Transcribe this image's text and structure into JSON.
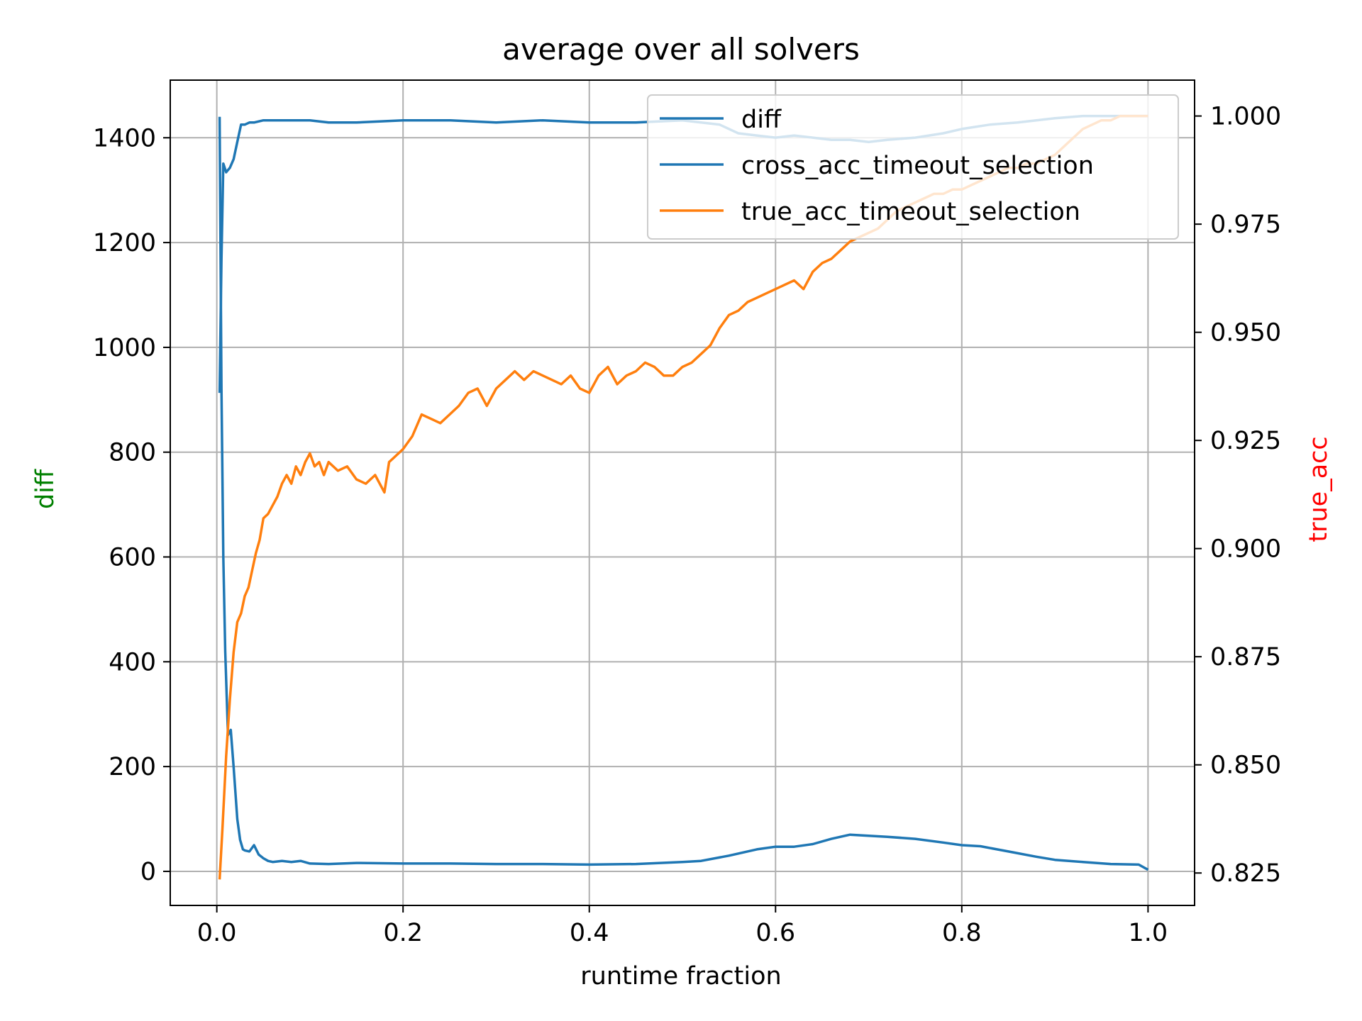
{
  "chart_data": {
    "type": "line",
    "title": "average over all solvers",
    "xlabel": "runtime fraction",
    "ylabel": "diff",
    "y2label": "true_acc",
    "xlim": [
      -0.05,
      1.05
    ],
    "ylim": [
      -65,
      1510
    ],
    "y2lim": [
      0.8175,
      1.0083
    ],
    "xticks": [
      "0.0",
      "0.2",
      "0.4",
      "0.6",
      "0.8",
      "1.0"
    ],
    "xtick_values": [
      0.0,
      0.2,
      0.4,
      0.6,
      0.8,
      1.0
    ],
    "yticks": [
      "0",
      "200",
      "400",
      "600",
      "800",
      "1000",
      "1200",
      "1400"
    ],
    "ytick_values": [
      0,
      200,
      400,
      600,
      800,
      1000,
      1200,
      1400
    ],
    "y2ticks": [
      "0.825",
      "0.850",
      "0.875",
      "0.900",
      "0.925",
      "0.950",
      "0.975",
      "1.000"
    ],
    "y2tick_values": [
      0.825,
      0.85,
      0.875,
      0.9,
      0.925,
      0.95,
      0.975,
      1.0
    ],
    "grid": true,
    "legend_position": "top-right",
    "colors": {
      "blue": "#1f77b4",
      "orange": "#ff7f0e",
      "grid": "#b0b0b0",
      "ylabel_color": "#008000",
      "y2label_color": "#ff0000"
    },
    "series": [
      {
        "name": "diff",
        "axis": "left",
        "color": "#1f77b4",
        "x": [
          0.003,
          0.005,
          0.007,
          0.009,
          0.012,
          0.015,
          0.018,
          0.02,
          0.022,
          0.025,
          0.028,
          0.03,
          0.035,
          0.04,
          0.045,
          0.05,
          0.055,
          0.06,
          0.07,
          0.08,
          0.09,
          0.1,
          0.12,
          0.15,
          0.2,
          0.25,
          0.3,
          0.35,
          0.4,
          0.45,
          0.5,
          0.52,
          0.55,
          0.58,
          0.6,
          0.62,
          0.64,
          0.66,
          0.68,
          0.7,
          0.72,
          0.75,
          0.78,
          0.8,
          0.82,
          0.85,
          0.88,
          0.9,
          0.93,
          0.96,
          0.99,
          1.0
        ],
        "y": [
          1440,
          920,
          600,
          420,
          260,
          270,
          200,
          150,
          100,
          60,
          42,
          40,
          38,
          50,
          32,
          25,
          20,
          18,
          20,
          18,
          20,
          15,
          14,
          16,
          15,
          15,
          14,
          14,
          13,
          14,
          18,
          20,
          30,
          42,
          47,
          47,
          52,
          62,
          70,
          68,
          66,
          62,
          55,
          50,
          48,
          38,
          28,
          22,
          18,
          14,
          13,
          3
        ]
      },
      {
        "name": "cross_acc_timeout_selection",
        "axis": "right",
        "color": "#1f77b4",
        "x": [
          0.003,
          0.005,
          0.007,
          0.01,
          0.014,
          0.018,
          0.022,
          0.026,
          0.03,
          0.035,
          0.04,
          0.05,
          0.06,
          0.08,
          0.1,
          0.12,
          0.15,
          0.2,
          0.25,
          0.3,
          0.35,
          0.4,
          0.45,
          0.5,
          0.52,
          0.54,
          0.56,
          0.58,
          0.6,
          0.62,
          0.64,
          0.66,
          0.68,
          0.7,
          0.72,
          0.75,
          0.78,
          0.8,
          0.83,
          0.86,
          0.9,
          0.93,
          0.96,
          0.99,
          1.0
        ],
        "y": [
          0.936,
          0.967,
          0.989,
          0.987,
          0.988,
          0.99,
          0.994,
          0.998,
          0.998,
          0.9985,
          0.9985,
          0.999,
          0.999,
          0.999,
          0.999,
          0.9985,
          0.9985,
          0.999,
          0.999,
          0.9985,
          0.999,
          0.9985,
          0.9985,
          0.999,
          0.9985,
          0.998,
          0.996,
          0.9955,
          0.995,
          0.9955,
          0.995,
          0.9945,
          0.9945,
          0.994,
          0.9945,
          0.995,
          0.996,
          0.997,
          0.998,
          0.9985,
          0.9995,
          1.0,
          1.0,
          1.0,
          1.0
        ]
      },
      {
        "name": "true_acc_timeout_selection",
        "axis": "right",
        "color": "#ff7f0e",
        "x": [
          0.003,
          0.006,
          0.01,
          0.014,
          0.018,
          0.022,
          0.026,
          0.03,
          0.034,
          0.038,
          0.042,
          0.046,
          0.05,
          0.055,
          0.06,
          0.065,
          0.07,
          0.075,
          0.08,
          0.085,
          0.09,
          0.095,
          0.1,
          0.105,
          0.11,
          0.115,
          0.12,
          0.13,
          0.14,
          0.15,
          0.16,
          0.17,
          0.18,
          0.185,
          0.19,
          0.2,
          0.21,
          0.22,
          0.23,
          0.24,
          0.25,
          0.26,
          0.27,
          0.28,
          0.29,
          0.3,
          0.31,
          0.32,
          0.33,
          0.34,
          0.35,
          0.36,
          0.37,
          0.38,
          0.39,
          0.4,
          0.41,
          0.42,
          0.43,
          0.44,
          0.45,
          0.46,
          0.47,
          0.48,
          0.49,
          0.5,
          0.51,
          0.52,
          0.53,
          0.54,
          0.55,
          0.56,
          0.57,
          0.58,
          0.59,
          0.6,
          0.61,
          0.62,
          0.63,
          0.64,
          0.65,
          0.66,
          0.67,
          0.68,
          0.69,
          0.7,
          0.71,
          0.72,
          0.73,
          0.74,
          0.75,
          0.76,
          0.77,
          0.78,
          0.79,
          0.8,
          0.81,
          0.82,
          0.83,
          0.84,
          0.85,
          0.86,
          0.87,
          0.88,
          0.89,
          0.9,
          0.91,
          0.92,
          0.93,
          0.94,
          0.95,
          0.96,
          0.97,
          0.98,
          1.0
        ],
        "y": [
          0.8235,
          0.835,
          0.852,
          0.865,
          0.876,
          0.883,
          0.885,
          0.889,
          0.891,
          0.895,
          0.899,
          0.902,
          0.907,
          0.908,
          0.91,
          0.912,
          0.915,
          0.917,
          0.915,
          0.919,
          0.917,
          0.92,
          0.922,
          0.919,
          0.92,
          0.917,
          0.92,
          0.918,
          0.919,
          0.916,
          0.915,
          0.917,
          0.913,
          0.92,
          0.921,
          0.923,
          0.926,
          0.931,
          0.93,
          0.929,
          0.931,
          0.933,
          0.936,
          0.937,
          0.933,
          0.937,
          0.939,
          0.941,
          0.939,
          0.941,
          0.94,
          0.939,
          0.938,
          0.94,
          0.937,
          0.936,
          0.94,
          0.942,
          0.938,
          0.94,
          0.941,
          0.943,
          0.942,
          0.94,
          0.94,
          0.942,
          0.943,
          0.945,
          0.947,
          0.951,
          0.954,
          0.955,
          0.957,
          0.958,
          0.959,
          0.96,
          0.961,
          0.962,
          0.96,
          0.964,
          0.966,
          0.967,
          0.969,
          0.971,
          0.972,
          0.973,
          0.974,
          0.976,
          0.978,
          0.979,
          0.98,
          0.981,
          0.982,
          0.982,
          0.983,
          0.983,
          0.984,
          0.985,
          0.986,
          0.987,
          0.988,
          0.988,
          0.989,
          0.989,
          0.99,
          0.991,
          0.993,
          0.995,
          0.997,
          0.998,
          0.999,
          0.999,
          1.0,
          1.0,
          1.0
        ]
      }
    ]
  }
}
